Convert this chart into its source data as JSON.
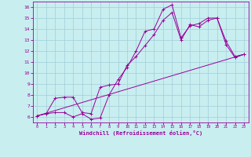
{
  "xlabel": "Windchill (Refroidissement éolien,°C)",
  "bg_color": "#c8eef0",
  "line_color": "#990099",
  "grid_color": "#a0ced8",
  "xlim": [
    -0.5,
    23.5
  ],
  "ylim": [
    5.5,
    16.5
  ],
  "xticks": [
    0,
    1,
    2,
    3,
    4,
    5,
    6,
    7,
    8,
    9,
    10,
    11,
    12,
    13,
    14,
    15,
    16,
    17,
    18,
    19,
    20,
    21,
    22,
    23
  ],
  "yticks": [
    6,
    7,
    8,
    9,
    10,
    11,
    12,
    13,
    14,
    15,
    16
  ],
  "series1_x": [
    0,
    1,
    2,
    3,
    4,
    5,
    6,
    7,
    8,
    9,
    10,
    11,
    12,
    13,
    14,
    15,
    16,
    17,
    18,
    19,
    20,
    21,
    22,
    23
  ],
  "series1_y": [
    6.1,
    6.3,
    6.4,
    6.4,
    6.0,
    6.3,
    5.8,
    5.9,
    8.0,
    9.4,
    10.5,
    12.0,
    13.8,
    14.0,
    15.8,
    16.2,
    13.2,
    14.3,
    14.5,
    15.0,
    15.0,
    12.6,
    11.4,
    11.7
  ],
  "series2_x": [
    0,
    1,
    2,
    3,
    4,
    5,
    6,
    7,
    8,
    9,
    10,
    11,
    12,
    13,
    14,
    15,
    16,
    17,
    18,
    19,
    20,
    21,
    22,
    23
  ],
  "series2_y": [
    6.1,
    6.3,
    7.7,
    7.8,
    7.8,
    6.4,
    6.3,
    8.7,
    8.9,
    9.0,
    10.7,
    11.5,
    12.5,
    13.5,
    14.8,
    15.5,
    13.0,
    14.4,
    14.2,
    14.8,
    15.0,
    12.9,
    11.5,
    11.7
  ],
  "trend_x": [
    0,
    23
  ],
  "trend_y": [
    6.1,
    11.7
  ]
}
